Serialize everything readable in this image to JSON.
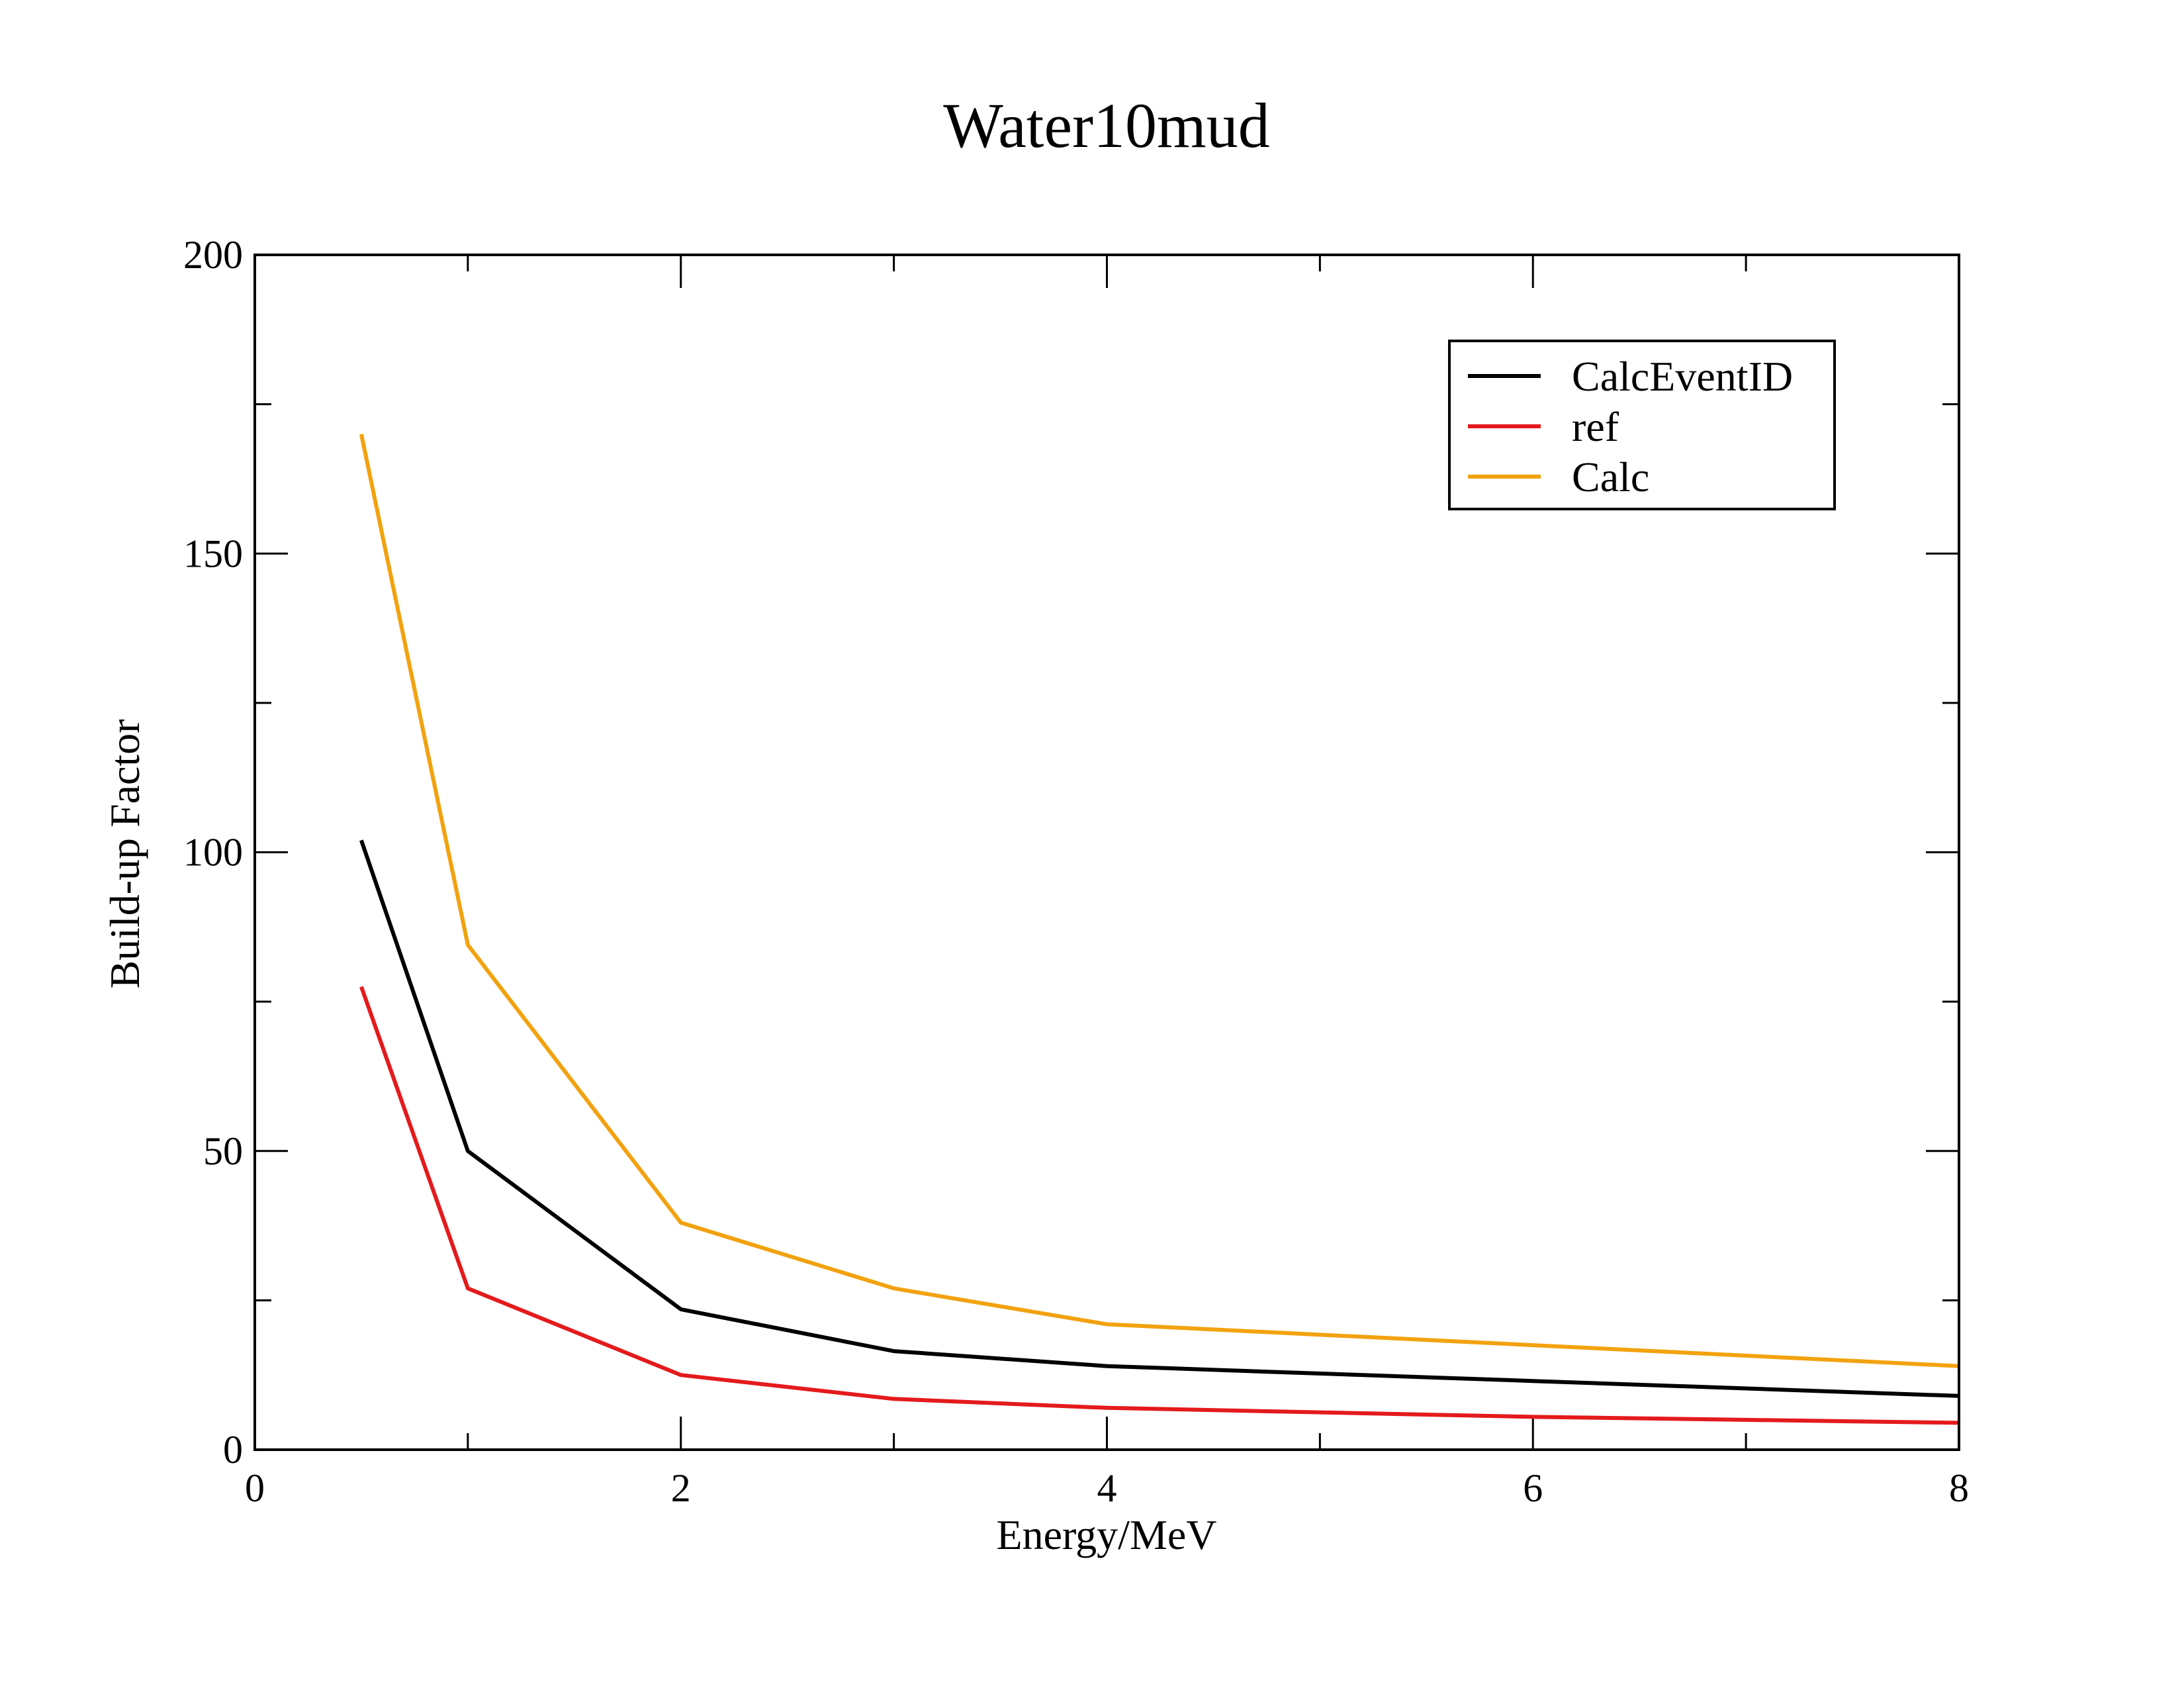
{
  "chart_data": {
    "type": "line",
    "title": "Water10mud",
    "xlabel": "Energy/MeV",
    "ylabel": "Build-up Factor",
    "xlim": [
      0,
      8
    ],
    "ylim": [
      0,
      200
    ],
    "xticks": [
      0,
      2,
      4,
      6,
      8
    ],
    "yticks": [
      0,
      50,
      100,
      150,
      200
    ],
    "xtick_labels": [
      "0",
      "2",
      "4",
      "6",
      "8"
    ],
    "ytick_labels": [
      "0",
      "50",
      "100",
      "150",
      "200"
    ],
    "x_minor_step": 1,
    "y_minor_step": 25,
    "grid": false,
    "legend_position": "top-right",
    "x": [
      0.5,
      1,
      2,
      3,
      4,
      6,
      8
    ],
    "series": [
      {
        "name": "CalcEventID",
        "color": "#000000",
        "values": [
          102,
          50,
          23.5,
          16.5,
          14,
          11.5,
          9
        ]
      },
      {
        "name": "ref",
        "color": "#e41a1c",
        "values": [
          77.5,
          27,
          12.5,
          8.5,
          7,
          5.5,
          4.5
        ]
      },
      {
        "name": "Calc",
        "color": "#f2a20f",
        "values": [
          170,
          84.5,
          38,
          27,
          21,
          17.5,
          14
        ]
      }
    ]
  }
}
